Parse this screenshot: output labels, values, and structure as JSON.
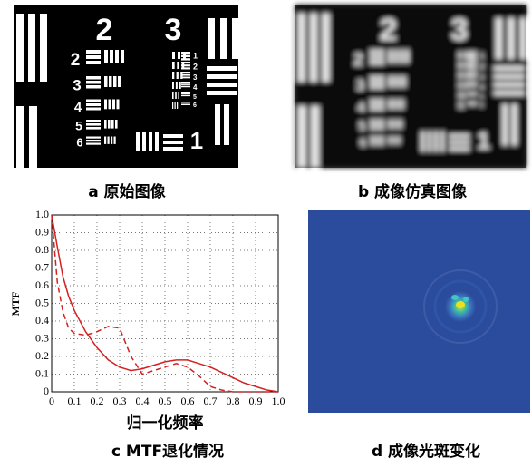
{
  "panels": {
    "a": "a  原始图像",
    "b": "b  成像仿真图像",
    "c": "c  MTF退化情况",
    "d": "d  成像光斑变化"
  },
  "target_labels": {
    "big": [
      "2",
      "3"
    ],
    "rows": [
      "2",
      "3",
      "4",
      "5",
      "6"
    ],
    "bottom": "1",
    "small": [
      "1",
      "2",
      "3",
      "4",
      "5",
      "6"
    ]
  },
  "chart_data": {
    "type": "line",
    "xlabel": "归一化频率",
    "ylabel": "MTF",
    "x": [
      0,
      0.025,
      0.05,
      0.075,
      0.1,
      0.15,
      0.2,
      0.25,
      0.3,
      0.35,
      0.4,
      0.45,
      0.5,
      0.55,
      0.6,
      0.65,
      0.7,
      0.75,
      0.8,
      0.85,
      0.9,
      0.95,
      1.0
    ],
    "series": [
      {
        "color": "#d42020",
        "dash": false,
        "values": [
          1.0,
          0.82,
          0.65,
          0.54,
          0.46,
          0.34,
          0.25,
          0.18,
          0.14,
          0.12,
          0.13,
          0.15,
          0.17,
          0.18,
          0.18,
          0.16,
          0.14,
          0.11,
          0.08,
          0.05,
          0.03,
          0.01,
          0.0
        ]
      },
      {
        "color": "#d42020",
        "dash": true,
        "values": [
          1.0,
          0.62,
          0.45,
          0.36,
          0.33,
          0.32,
          0.34,
          0.37,
          0.36,
          0.2,
          0.1,
          0.12,
          0.14,
          0.16,
          0.14,
          0.09,
          0.03,
          0.01,
          0.0,
          0.0,
          0.0,
          0.0,
          0.0
        ]
      }
    ],
    "xlim": [
      0,
      1
    ],
    "ylim": [
      0,
      1
    ],
    "xticks": [
      0,
      0.1,
      0.2,
      0.3,
      0.4,
      0.5,
      0.6,
      0.7,
      0.8,
      0.9,
      {
        "value": 1,
        "label": "1.0"
      }
    ],
    "yticks": [
      0,
      0.1,
      0.2,
      0.3,
      0.4,
      0.5,
      0.6,
      0.7,
      0.8,
      0.9,
      {
        "value": 1,
        "label": "1.0"
      }
    ],
    "grid": true
  }
}
